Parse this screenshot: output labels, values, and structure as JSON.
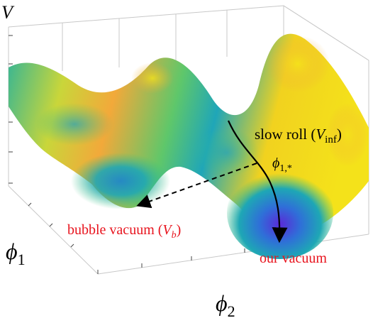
{
  "axes": {
    "v_label": "V",
    "phi1_label": "ϕ",
    "phi1_sub": "1",
    "phi2_label": "ϕ",
    "phi2_sub": "2"
  },
  "annotations": {
    "slow_roll_prefix": "slow roll (",
    "slow_roll_V": "V",
    "slow_roll_sub": "inf",
    "slow_roll_suffix": ")",
    "phi_star": "ϕ",
    "phi_star_sub": "1,*",
    "bubble_prefix": "bubble vacuum (",
    "bubble_V": "V",
    "bubble_sub": "b",
    "bubble_suffix": ")",
    "our_vacuum": "our vacuum"
  },
  "colors": {
    "annotation_red": "#e8141e",
    "text": "#000000",
    "surface_yellow": "#f4e21a",
    "surface_orange": "#f2a93a",
    "surface_green": "#3cc27f",
    "surface_teal": "#1fa6b8",
    "surface_blue": "#2f6fd8",
    "surface_purple": "#5a2ad8"
  }
}
